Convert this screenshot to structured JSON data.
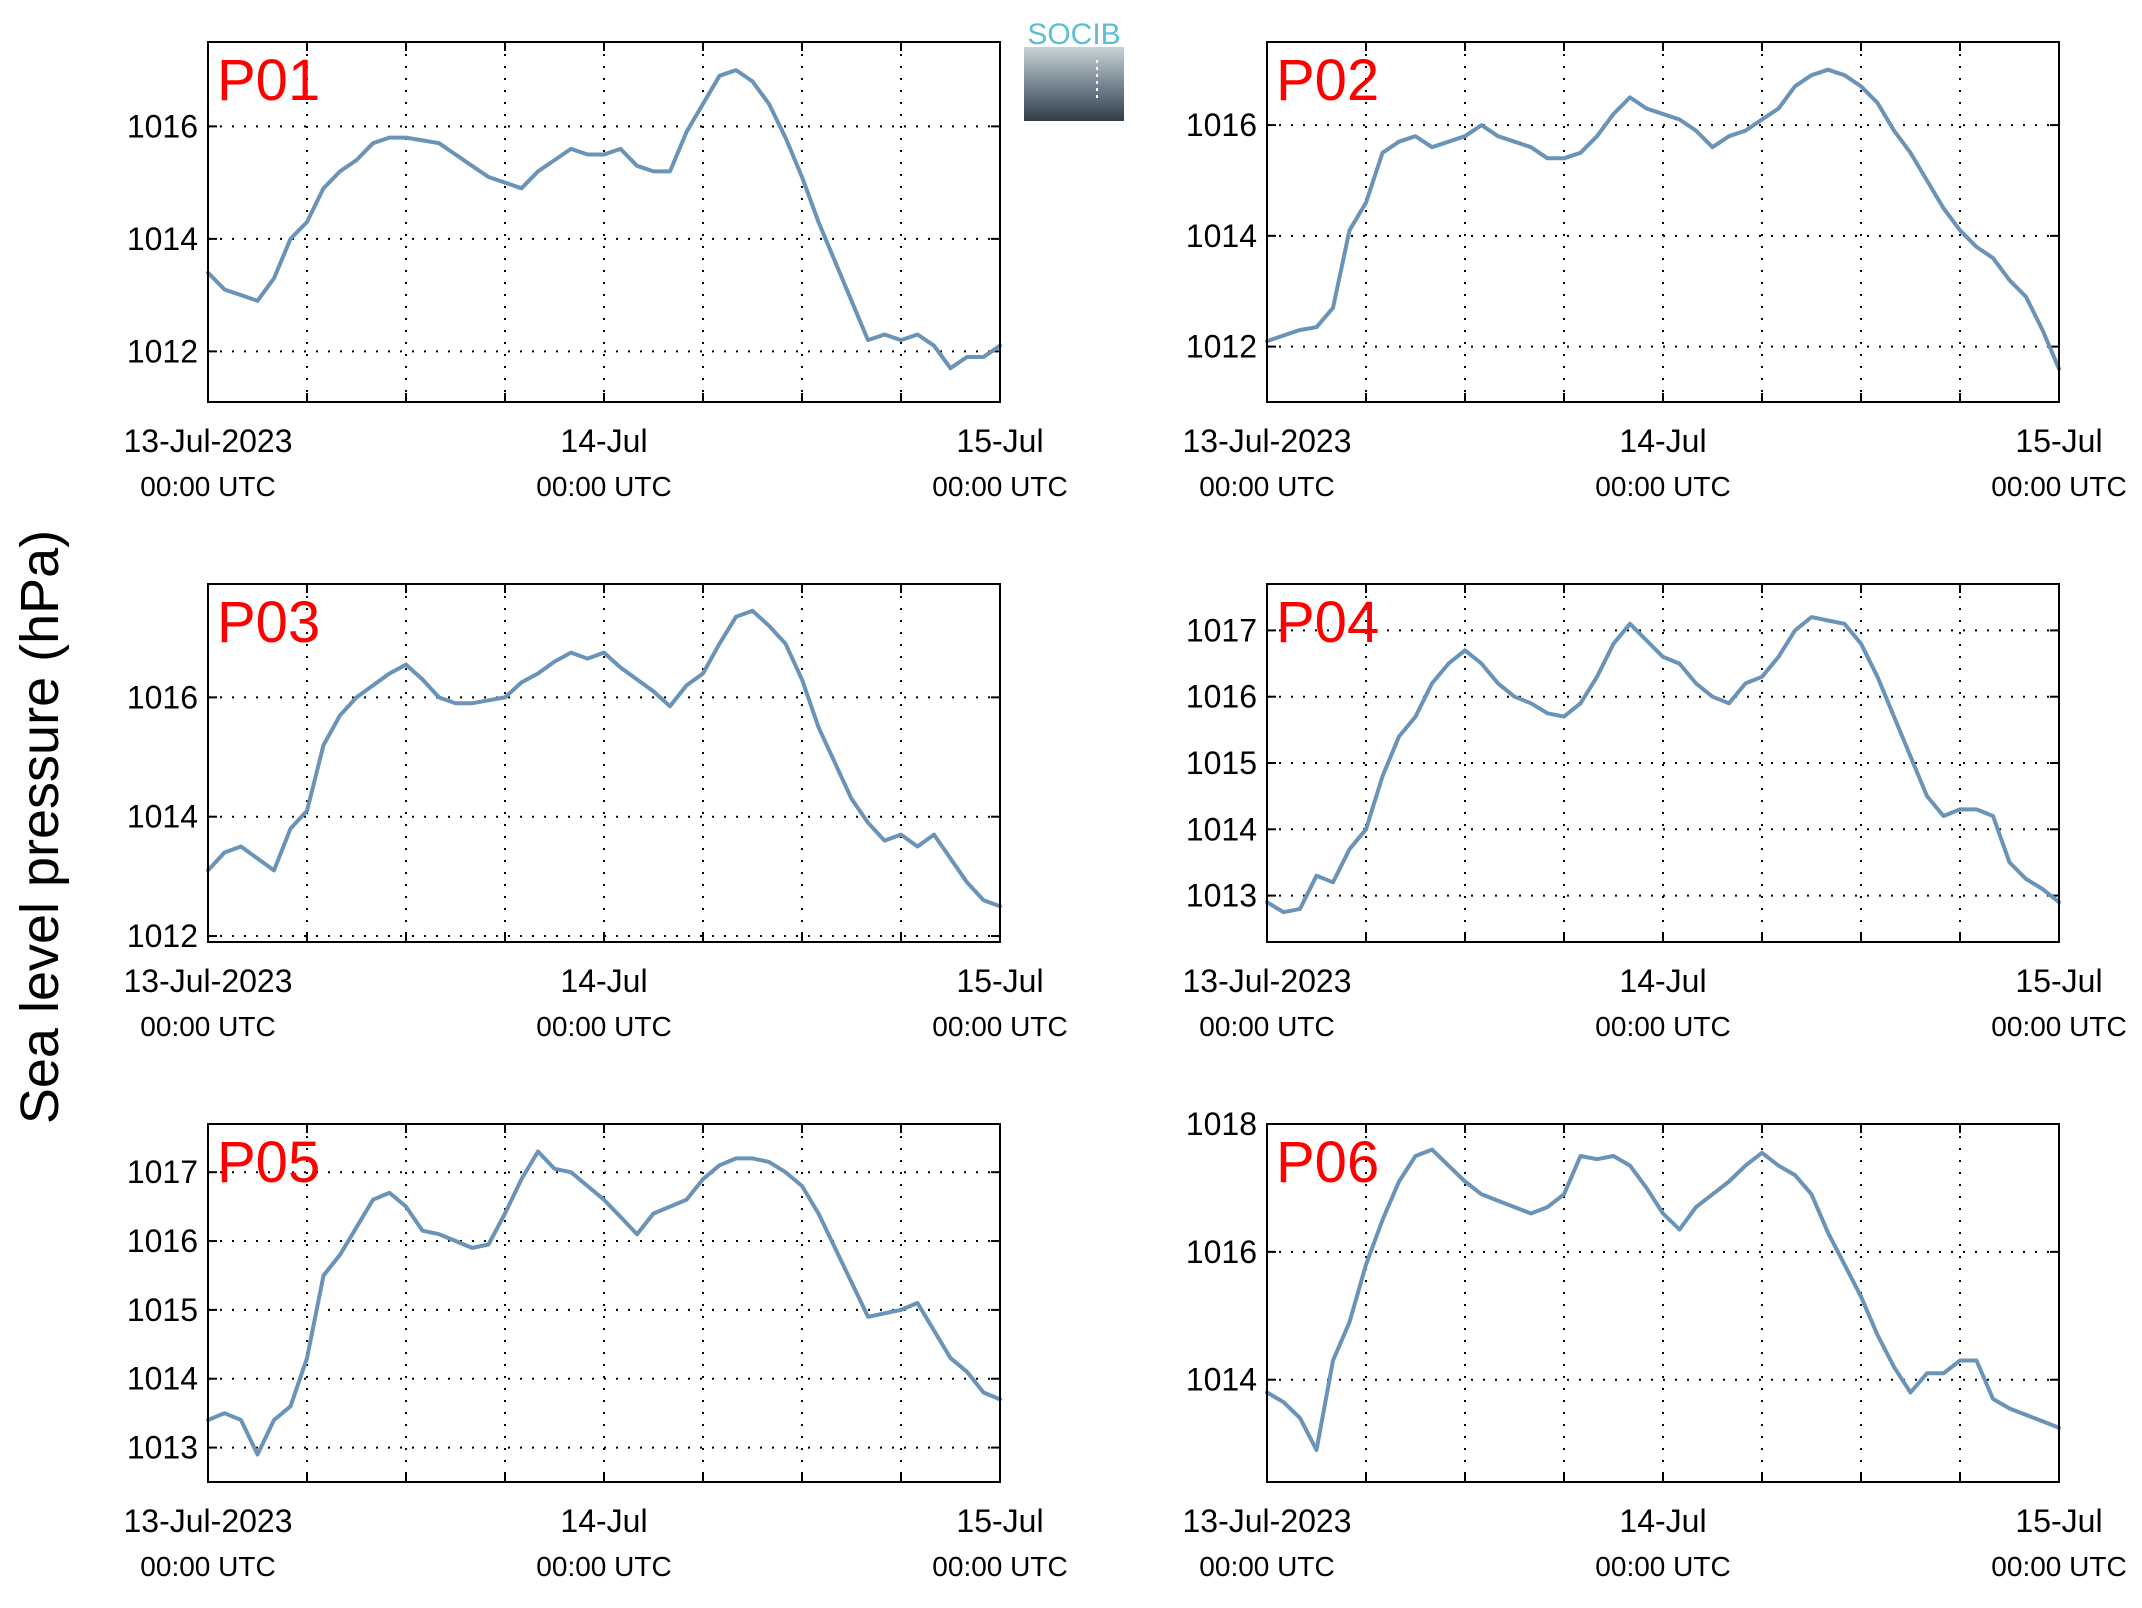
{
  "figure": {
    "ylabel": "Sea level pressure (hPa)",
    "logo_text": "SOCIB",
    "title_color": "#ff0000",
    "line_color": "#6a93b8",
    "logo_color": "#5bc0d4"
  },
  "chart_data": [
    {
      "type": "line",
      "title": "P01",
      "xlabel": "",
      "ylabel": "Sea level pressure (hPa)",
      "grid": true,
      "xlim": [
        "2023-07-13 00:00",
        "2023-07-15 00:00"
      ],
      "ylim": [
        1011.1,
        1017.5
      ],
      "yticks": [
        1012,
        1014,
        1016
      ],
      "xticks": [
        {
          "top": "13-Jul-2023",
          "bottom": "00:00 UTC"
        },
        {
          "top": "14-Jul",
          "bottom": "00:00 UTC"
        },
        {
          "top": "15-Jul",
          "bottom": "00:00 UTC"
        }
      ],
      "series": [
        {
          "x": [
            "2023-07-13 00:00",
            "2023-07-13 01:00",
            "2023-07-13 02:00",
            "2023-07-13 03:00",
            "2023-07-13 04:00",
            "2023-07-13 05:00",
            "2023-07-13 06:00",
            "2023-07-13 07:00",
            "2023-07-13 08:00",
            "2023-07-13 09:00",
            "2023-07-13 10:00",
            "2023-07-13 11:00",
            "2023-07-13 12:00",
            "2023-07-13 13:00",
            "2023-07-13 14:00",
            "2023-07-13 15:00",
            "2023-07-13 16:00",
            "2023-07-13 17:00",
            "2023-07-13 18:00",
            "2023-07-13 19:00",
            "2023-07-13 20:00",
            "2023-07-13 21:00",
            "2023-07-13 22:00",
            "2023-07-13 23:00",
            "2023-07-14 00:00",
            "2023-07-14 01:00",
            "2023-07-14 02:00",
            "2023-07-14 03:00",
            "2023-07-14 04:00",
            "2023-07-14 05:00",
            "2023-07-14 06:00",
            "2023-07-14 07:00",
            "2023-07-14 08:00",
            "2023-07-14 09:00",
            "2023-07-14 10:00",
            "2023-07-14 11:00",
            "2023-07-14 12:00",
            "2023-07-14 13:00",
            "2023-07-14 14:00",
            "2023-07-14 15:00",
            "2023-07-14 16:00",
            "2023-07-14 17:00",
            "2023-07-14 18:00",
            "2023-07-14 19:00",
            "2023-07-14 20:00",
            "2023-07-14 21:00",
            "2023-07-14 22:00",
            "2023-07-14 23:00",
            "2023-07-15 00:00"
          ],
          "values": [
            1013.4,
            1013.1,
            1013.0,
            1012.9,
            1013.3,
            1014.0,
            1014.3,
            1014.9,
            1015.2,
            1015.4,
            1015.7,
            1015.8,
            1015.8,
            1015.75,
            1015.7,
            1015.5,
            1015.3,
            1015.1,
            1015.0,
            1014.9,
            1015.2,
            1015.4,
            1015.6,
            1015.5,
            1015.5,
            1015.6,
            1015.3,
            1015.2,
            1015.2,
            1015.9,
            1016.4,
            1016.9,
            1017.0,
            1016.8,
            1016.4,
            1015.8,
            1015.1,
            1014.3,
            1013.6,
            1012.9,
            1012.2,
            1012.3,
            1012.2,
            1012.3,
            1012.1,
            1011.7,
            1011.9,
            1011.9,
            1012.1
          ]
        }
      ]
    },
    {
      "type": "line",
      "title": "P02",
      "xlabel": "",
      "ylabel": "Sea level pressure (hPa)",
      "grid": true,
      "xlim": [
        "2023-07-13 00:00",
        "2023-07-15 00:00"
      ],
      "ylim": [
        1011.0,
        1017.5
      ],
      "yticks": [
        1012,
        1014,
        1016
      ],
      "xticks": [
        {
          "top": "13-Jul-2023",
          "bottom": "00:00 UTC"
        },
        {
          "top": "14-Jul",
          "bottom": "00:00 UTC"
        },
        {
          "top": "15-Jul",
          "bottom": "00:00 UTC"
        }
      ],
      "series": [
        {
          "x": [
            "2023-07-13 00:00",
            "2023-07-13 01:00",
            "2023-07-13 02:00",
            "2023-07-13 03:00",
            "2023-07-13 04:00",
            "2023-07-13 05:00",
            "2023-07-13 06:00",
            "2023-07-13 07:00",
            "2023-07-13 08:00",
            "2023-07-13 09:00",
            "2023-07-13 10:00",
            "2023-07-13 11:00",
            "2023-07-13 12:00",
            "2023-07-13 13:00",
            "2023-07-13 14:00",
            "2023-07-13 15:00",
            "2023-07-13 16:00",
            "2023-07-13 17:00",
            "2023-07-13 18:00",
            "2023-07-13 19:00",
            "2023-07-13 20:00",
            "2023-07-13 21:00",
            "2023-07-13 22:00",
            "2023-07-13 23:00",
            "2023-07-14 00:00",
            "2023-07-14 01:00",
            "2023-07-14 02:00",
            "2023-07-14 03:00",
            "2023-07-14 04:00",
            "2023-07-14 05:00",
            "2023-07-14 06:00",
            "2023-07-14 07:00",
            "2023-07-14 08:00",
            "2023-07-14 09:00",
            "2023-07-14 10:00",
            "2023-07-14 11:00",
            "2023-07-14 12:00",
            "2023-07-14 13:00",
            "2023-07-14 14:00",
            "2023-07-14 15:00",
            "2023-07-14 16:00",
            "2023-07-14 17:00",
            "2023-07-14 18:00",
            "2023-07-14 19:00",
            "2023-07-14 20:00",
            "2023-07-14 21:00",
            "2023-07-14 22:00",
            "2023-07-14 23:00",
            "2023-07-15 00:00"
          ],
          "values": [
            1012.1,
            1012.2,
            1012.3,
            1012.35,
            1012.7,
            1014.1,
            1014.6,
            1015.5,
            1015.7,
            1015.8,
            1015.6,
            1015.7,
            1015.8,
            1016.0,
            1015.8,
            1015.7,
            1015.6,
            1015.4,
            1015.4,
            1015.5,
            1015.8,
            1016.2,
            1016.5,
            1016.3,
            1016.2,
            1016.1,
            1015.9,
            1015.6,
            1015.8,
            1015.9,
            1016.1,
            1016.3,
            1016.7,
            1016.9,
            1017.0,
            1016.9,
            1016.7,
            1016.4,
            1015.9,
            1015.5,
            1015.0,
            1014.5,
            1014.1,
            1013.8,
            1013.6,
            1013.2,
            1012.9,
            1012.3,
            1011.6
          ]
        }
      ]
    },
    {
      "type": "line",
      "title": "P03",
      "xlabel": "",
      "ylabel": "Sea level pressure (hPa)",
      "grid": true,
      "xlim": [
        "2023-07-13 00:00",
        "2023-07-15 00:00"
      ],
      "ylim": [
        1011.9,
        1017.9
      ],
      "yticks": [
        1012,
        1014,
        1016
      ],
      "xticks": [
        {
          "top": "13-Jul-2023",
          "bottom": "00:00 UTC"
        },
        {
          "top": "14-Jul",
          "bottom": "00:00 UTC"
        },
        {
          "top": "15-Jul",
          "bottom": "00:00 UTC"
        }
      ],
      "series": [
        {
          "x": [
            "2023-07-13 00:00",
            "2023-07-13 01:00",
            "2023-07-13 02:00",
            "2023-07-13 03:00",
            "2023-07-13 04:00",
            "2023-07-13 05:00",
            "2023-07-13 06:00",
            "2023-07-13 07:00",
            "2023-07-13 08:00",
            "2023-07-13 09:00",
            "2023-07-13 10:00",
            "2023-07-13 11:00",
            "2023-07-13 12:00",
            "2023-07-13 13:00",
            "2023-07-13 14:00",
            "2023-07-13 15:00",
            "2023-07-13 16:00",
            "2023-07-13 17:00",
            "2023-07-13 18:00",
            "2023-07-13 19:00",
            "2023-07-13 20:00",
            "2023-07-13 21:00",
            "2023-07-13 22:00",
            "2023-07-13 23:00",
            "2023-07-14 00:00",
            "2023-07-14 01:00",
            "2023-07-14 02:00",
            "2023-07-14 03:00",
            "2023-07-14 04:00",
            "2023-07-14 05:00",
            "2023-07-14 06:00",
            "2023-07-14 07:00",
            "2023-07-14 08:00",
            "2023-07-14 09:00",
            "2023-07-14 10:00",
            "2023-07-14 11:00",
            "2023-07-14 12:00",
            "2023-07-14 13:00",
            "2023-07-14 14:00",
            "2023-07-14 15:00",
            "2023-07-14 16:00",
            "2023-07-14 17:00",
            "2023-07-14 18:00",
            "2023-07-14 19:00",
            "2023-07-14 20:00",
            "2023-07-14 21:00",
            "2023-07-14 22:00",
            "2023-07-14 23:00",
            "2023-07-15 00:00"
          ],
          "values": [
            1013.1,
            1013.4,
            1013.5,
            1013.3,
            1013.1,
            1013.8,
            1014.1,
            1015.2,
            1015.7,
            1016.0,
            1016.2,
            1016.4,
            1016.55,
            1016.3,
            1016.0,
            1015.9,
            1015.9,
            1015.95,
            1016.0,
            1016.25,
            1016.4,
            1016.6,
            1016.75,
            1016.65,
            1016.75,
            1016.5,
            1016.3,
            1016.1,
            1015.85,
            1016.2,
            1016.4,
            1016.9,
            1017.35,
            1017.45,
            1017.2,
            1016.9,
            1016.3,
            1015.5,
            1014.9,
            1014.3,
            1013.9,
            1013.6,
            1013.7,
            1013.5,
            1013.7,
            1013.3,
            1012.9,
            1012.6,
            1012.5
          ]
        }
      ]
    },
    {
      "type": "line",
      "title": "P04",
      "xlabel": "",
      "ylabel": "Sea level pressure (hPa)",
      "grid": true,
      "xlim": [
        "2023-07-13 00:00",
        "2023-07-15 00:00"
      ],
      "ylim": [
        1012.3,
        1017.7
      ],
      "yticks": [
        1013,
        1014,
        1015,
        1016,
        1017
      ],
      "xticks": [
        {
          "top": "13-Jul-2023",
          "bottom": "00:00 UTC"
        },
        {
          "top": "14-Jul",
          "bottom": "00:00 UTC"
        },
        {
          "top": "15-Jul",
          "bottom": "00:00 UTC"
        }
      ],
      "series": [
        {
          "x": [
            "2023-07-13 00:00",
            "2023-07-13 01:00",
            "2023-07-13 02:00",
            "2023-07-13 03:00",
            "2023-07-13 04:00",
            "2023-07-13 05:00",
            "2023-07-13 06:00",
            "2023-07-13 07:00",
            "2023-07-13 08:00",
            "2023-07-13 09:00",
            "2023-07-13 10:00",
            "2023-07-13 11:00",
            "2023-07-13 12:00",
            "2023-07-13 13:00",
            "2023-07-13 14:00",
            "2023-07-13 15:00",
            "2023-07-13 16:00",
            "2023-07-13 17:00",
            "2023-07-13 18:00",
            "2023-07-13 19:00",
            "2023-07-13 20:00",
            "2023-07-13 21:00",
            "2023-07-13 22:00",
            "2023-07-13 23:00",
            "2023-07-14 00:00",
            "2023-07-14 01:00",
            "2023-07-14 02:00",
            "2023-07-14 03:00",
            "2023-07-14 04:00",
            "2023-07-14 05:00",
            "2023-07-14 06:00",
            "2023-07-14 07:00",
            "2023-07-14 08:00",
            "2023-07-14 09:00",
            "2023-07-14 10:00",
            "2023-07-14 11:00",
            "2023-07-14 12:00",
            "2023-07-14 13:00",
            "2023-07-14 14:00",
            "2023-07-14 15:00",
            "2023-07-14 16:00",
            "2023-07-14 17:00",
            "2023-07-14 18:00",
            "2023-07-14 19:00",
            "2023-07-14 20:00",
            "2023-07-14 21:00",
            "2023-07-14 22:00",
            "2023-07-14 23:00",
            "2023-07-15 00:00"
          ],
          "values": [
            1012.9,
            1012.75,
            1012.8,
            1013.3,
            1013.2,
            1013.7,
            1014.0,
            1014.8,
            1015.4,
            1015.7,
            1016.2,
            1016.5,
            1016.7,
            1016.5,
            1016.2,
            1016.0,
            1015.9,
            1015.75,
            1015.7,
            1015.9,
            1016.3,
            1016.8,
            1017.1,
            1016.85,
            1016.6,
            1016.5,
            1016.2,
            1016.0,
            1015.9,
            1016.2,
            1016.3,
            1016.6,
            1017.0,
            1017.2,
            1017.15,
            1017.1,
            1016.8,
            1016.3,
            1015.7,
            1015.1,
            1014.5,
            1014.2,
            1014.3,
            1014.3,
            1014.2,
            1013.5,
            1013.25,
            1013.1,
            1012.9
          ]
        }
      ]
    },
    {
      "type": "line",
      "title": "P05",
      "xlabel": "",
      "ylabel": "Sea level pressure (hPa)",
      "grid": true,
      "xlim": [
        "2023-07-13 00:00",
        "2023-07-15 00:00"
      ],
      "ylim": [
        1012.5,
        1017.7
      ],
      "yticks": [
        1013,
        1014,
        1015,
        1016,
        1017
      ],
      "xticks": [
        {
          "top": "13-Jul-2023",
          "bottom": "00:00 UTC"
        },
        {
          "top": "14-Jul",
          "bottom": "00:00 UTC"
        },
        {
          "top": "15-Jul",
          "bottom": "00:00 UTC"
        }
      ],
      "series": [
        {
          "x": [
            "2023-07-13 00:00",
            "2023-07-13 01:00",
            "2023-07-13 02:00",
            "2023-07-13 03:00",
            "2023-07-13 04:00",
            "2023-07-13 05:00",
            "2023-07-13 06:00",
            "2023-07-13 07:00",
            "2023-07-13 08:00",
            "2023-07-13 09:00",
            "2023-07-13 10:00",
            "2023-07-13 11:00",
            "2023-07-13 12:00",
            "2023-07-13 13:00",
            "2023-07-13 14:00",
            "2023-07-13 15:00",
            "2023-07-13 16:00",
            "2023-07-13 17:00",
            "2023-07-13 18:00",
            "2023-07-13 19:00",
            "2023-07-13 20:00",
            "2023-07-13 21:00",
            "2023-07-13 22:00",
            "2023-07-13 23:00",
            "2023-07-14 00:00",
            "2023-07-14 01:00",
            "2023-07-14 02:00",
            "2023-07-14 03:00",
            "2023-07-14 04:00",
            "2023-07-14 05:00",
            "2023-07-14 06:00",
            "2023-07-14 07:00",
            "2023-07-14 08:00",
            "2023-07-14 09:00",
            "2023-07-14 10:00",
            "2023-07-14 11:00",
            "2023-07-14 12:00",
            "2023-07-14 13:00",
            "2023-07-14 14:00",
            "2023-07-14 15:00",
            "2023-07-14 16:00",
            "2023-07-14 17:00",
            "2023-07-14 18:00",
            "2023-07-14 19:00",
            "2023-07-14 20:00",
            "2023-07-14 21:00",
            "2023-07-14 22:00",
            "2023-07-14 23:00",
            "2023-07-15 00:00"
          ],
          "values": [
            1013.4,
            1013.5,
            1013.4,
            1012.9,
            1013.4,
            1013.6,
            1014.3,
            1015.5,
            1015.8,
            1016.2,
            1016.6,
            1016.7,
            1016.5,
            1016.15,
            1016.1,
            1016.0,
            1015.9,
            1015.95,
            1016.4,
            1016.9,
            1017.3,
            1017.05,
            1017.0,
            1016.8,
            1016.6,
            1016.35,
            1016.1,
            1016.4,
            1016.5,
            1016.6,
            1016.9,
            1017.1,
            1017.2,
            1017.2,
            1017.15,
            1017.0,
            1016.8,
            1016.4,
            1015.9,
            1015.4,
            1014.9,
            1014.95,
            1015.0,
            1015.1,
            1014.7,
            1014.3,
            1014.1,
            1013.8,
            1013.7
          ]
        }
      ]
    },
    {
      "type": "line",
      "title": "P06",
      "xlabel": "",
      "ylabel": "Sea level pressure (hPa)",
      "grid": true,
      "xlim": [
        "2023-07-13 00:00",
        "2023-07-15 00:00"
      ],
      "ylim": [
        1012.4,
        1018.0
      ],
      "yticks": [
        1014,
        1016,
        1018
      ],
      "xticks": [
        {
          "top": "13-Jul-2023",
          "bottom": "00:00 UTC"
        },
        {
          "top": "14-Jul",
          "bottom": "00:00 UTC"
        },
        {
          "top": "15-Jul",
          "bottom": "00:00 UTC"
        }
      ],
      "series": [
        {
          "x": [
            "2023-07-13 00:00",
            "2023-07-13 01:00",
            "2023-07-13 02:00",
            "2023-07-13 03:00",
            "2023-07-13 04:00",
            "2023-07-13 05:00",
            "2023-07-13 06:00",
            "2023-07-13 07:00",
            "2023-07-13 08:00",
            "2023-07-13 09:00",
            "2023-07-13 10:00",
            "2023-07-13 11:00",
            "2023-07-13 12:00",
            "2023-07-13 13:00",
            "2023-07-13 14:00",
            "2023-07-13 15:00",
            "2023-07-13 16:00",
            "2023-07-13 17:00",
            "2023-07-13 18:00",
            "2023-07-13 19:00",
            "2023-07-13 20:00",
            "2023-07-13 21:00",
            "2023-07-13 22:00",
            "2023-07-13 23:00",
            "2023-07-14 00:00",
            "2023-07-14 01:00",
            "2023-07-14 02:00",
            "2023-07-14 03:00",
            "2023-07-14 04:00",
            "2023-07-14 05:00",
            "2023-07-14 06:00",
            "2023-07-14 07:00",
            "2023-07-14 08:00",
            "2023-07-14 09:00",
            "2023-07-14 10:00",
            "2023-07-14 11:00",
            "2023-07-14 12:00",
            "2023-07-14 13:00",
            "2023-07-14 14:00",
            "2023-07-14 15:00",
            "2023-07-14 16:00",
            "2023-07-14 17:00",
            "2023-07-14 18:00",
            "2023-07-14 19:00",
            "2023-07-14 20:00",
            "2023-07-14 21:00",
            "2023-07-14 22:00",
            "2023-07-14 23:00",
            "2023-07-15 00:00"
          ],
          "values": [
            1013.8,
            1013.65,
            1013.4,
            1012.9,
            1014.3,
            1014.9,
            1015.8,
            1016.5,
            1017.1,
            1017.5,
            1017.6,
            1017.35,
            1017.1,
            1016.9,
            1016.8,
            1016.7,
            1016.6,
            1016.7,
            1016.9,
            1017.5,
            1017.45,
            1017.5,
            1017.35,
            1017.0,
            1016.6,
            1016.35,
            1016.7,
            1016.9,
            1017.1,
            1017.35,
            1017.55,
            1017.35,
            1017.2,
            1016.9,
            1016.3,
            1015.8,
            1015.3,
            1014.7,
            1014.2,
            1013.8,
            1014.1,
            1014.1,
            1014.3,
            1014.3,
            1013.7,
            1013.55,
            1013.45,
            1013.35,
            1013.25
          ]
        }
      ]
    }
  ]
}
